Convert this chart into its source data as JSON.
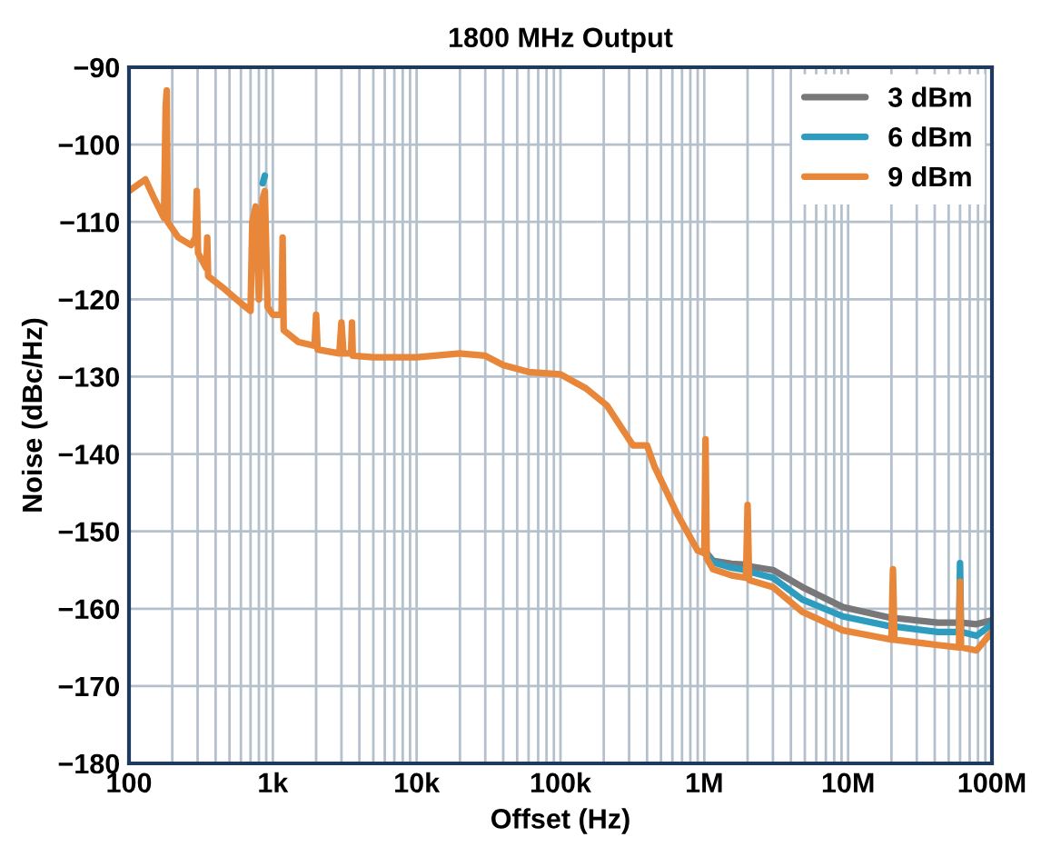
{
  "chart_data": {
    "type": "line",
    "title": "1800 MHz Output",
    "xlabel": "Offset (Hz)",
    "ylabel": "Noise (dBc/Hz)",
    "log": "x",
    "grid": true,
    "legend": "top right",
    "line_style": "solid",
    "xlim": [
      100,
      100000000
    ],
    "ylim": [
      -180,
      -90
    ],
    "xticks": [
      {
        "value": 100,
        "label": "100"
      },
      {
        "value": 1000,
        "label": "1k"
      },
      {
        "value": 10000,
        "label": "10k"
      },
      {
        "value": 100000,
        "label": "100k"
      },
      {
        "value": 1000000,
        "label": "1M"
      },
      {
        "value": 10000000,
        "label": "10M"
      },
      {
        "value": 100000000,
        "label": "100M"
      }
    ],
    "yticks": [
      -180,
      -170,
      -160,
      -150,
      -140,
      -130,
      -120,
      -110,
      -100,
      -90
    ],
    "x": [
      100,
      130,
      150,
      175,
      180,
      183,
      186,
      220,
      270,
      290,
      296,
      302,
      345,
      350,
      355,
      450,
      600,
      700,
      720,
      760,
      800,
      850,
      880,
      920,
      1000,
      1150,
      1170,
      1190,
      1500,
      1950,
      2000,
      2050,
      2900,
      3000,
      3100,
      3500,
      3550,
      3600,
      5000,
      7000,
      10000,
      20000,
      30000,
      40000,
      60000,
      100000,
      150000,
      210000,
      320000,
      400000,
      450000,
      650000,
      900000,
      1000000,
      1020000,
      1040000,
      1150000,
      1550000,
      1950000,
      2000000,
      2050000,
      3000000,
      4800000,
      9200000,
      20000000,
      20500000,
      21000000,
      42000000,
      59000000,
      60000000,
      61000000,
      78000000,
      100000000
    ],
    "series": [
      {
        "name": "3 dBm",
        "color": "#78787a",
        "values": [
          null,
          null,
          null,
          null,
          null,
          null,
          null,
          null,
          null,
          null,
          null,
          null,
          null,
          null,
          null,
          null,
          null,
          null,
          null,
          null,
          null,
          null,
          null,
          null,
          null,
          null,
          null,
          null,
          null,
          null,
          null,
          null,
          null,
          null,
          null,
          null,
          null,
          null,
          null,
          null,
          null,
          null,
          null,
          null,
          null,
          null,
          null,
          null,
          null,
          null,
          null,
          null,
          null,
          -152.8,
          -152.9,
          -152.8,
          -153.8,
          -154.2,
          -154.3,
          -154.4,
          -154.5,
          -155,
          -157.2,
          -159.8,
          -161.2,
          -161.2,
          -161.2,
          -161.8,
          -161.8,
          -161.8,
          -161.8,
          -162,
          -161.5
        ]
      },
      {
        "name": "6 dBm",
        "color": "#2e9cbf",
        "values": [
          null,
          null,
          null,
          null,
          null,
          null,
          null,
          null,
          null,
          null,
          null,
          null,
          null,
          null,
          null,
          null,
          null,
          null,
          null,
          null,
          null,
          -105,
          -104,
          null,
          null,
          null,
          null,
          null,
          null,
          null,
          null,
          null,
          null,
          null,
          null,
          null,
          null,
          null,
          null,
          null,
          null,
          null,
          null,
          null,
          null,
          null,
          null,
          null,
          null,
          null,
          null,
          null,
          null,
          -152.8,
          -152.9,
          -153,
          -154,
          -154.7,
          -155,
          -155.1,
          -155.2,
          -156,
          -158.8,
          -161,
          -162.3,
          -162.3,
          -162.3,
          -163,
          -163,
          -154.1,
          -163,
          -163.5,
          -162
        ]
      },
      {
        "name": "9 dBm",
        "color": "#e8863a",
        "values": [
          -106,
          -104.5,
          -107,
          -109.5,
          -95,
          -93,
          -110,
          -112,
          -113,
          -112,
          -106,
          -114,
          -116,
          -112,
          -117,
          -118.5,
          -120.5,
          -121.5,
          -110,
          -108,
          -120,
          -107,
          -106,
          -121,
          -122,
          -122,
          -112,
          -124,
          -125.5,
          -126,
          -122,
          -126.5,
          -127,
          -123,
          -127,
          -127,
          -123,
          -127.3,
          -127.5,
          -127.5,
          -127.5,
          -127,
          -127.3,
          -128.5,
          -129.4,
          -129.7,
          -131.5,
          -133.7,
          -138.9,
          -138.9,
          -141.6,
          -147.8,
          -152.5,
          -152.8,
          -138.1,
          -153.5,
          -154.9,
          -155.7,
          -156,
          -146.6,
          -156.3,
          -157.2,
          -160.4,
          -162.8,
          -164,
          -154.9,
          -164,
          -164.7,
          -165,
          -156.5,
          -165,
          -165.4,
          -163
        ]
      }
    ]
  }
}
